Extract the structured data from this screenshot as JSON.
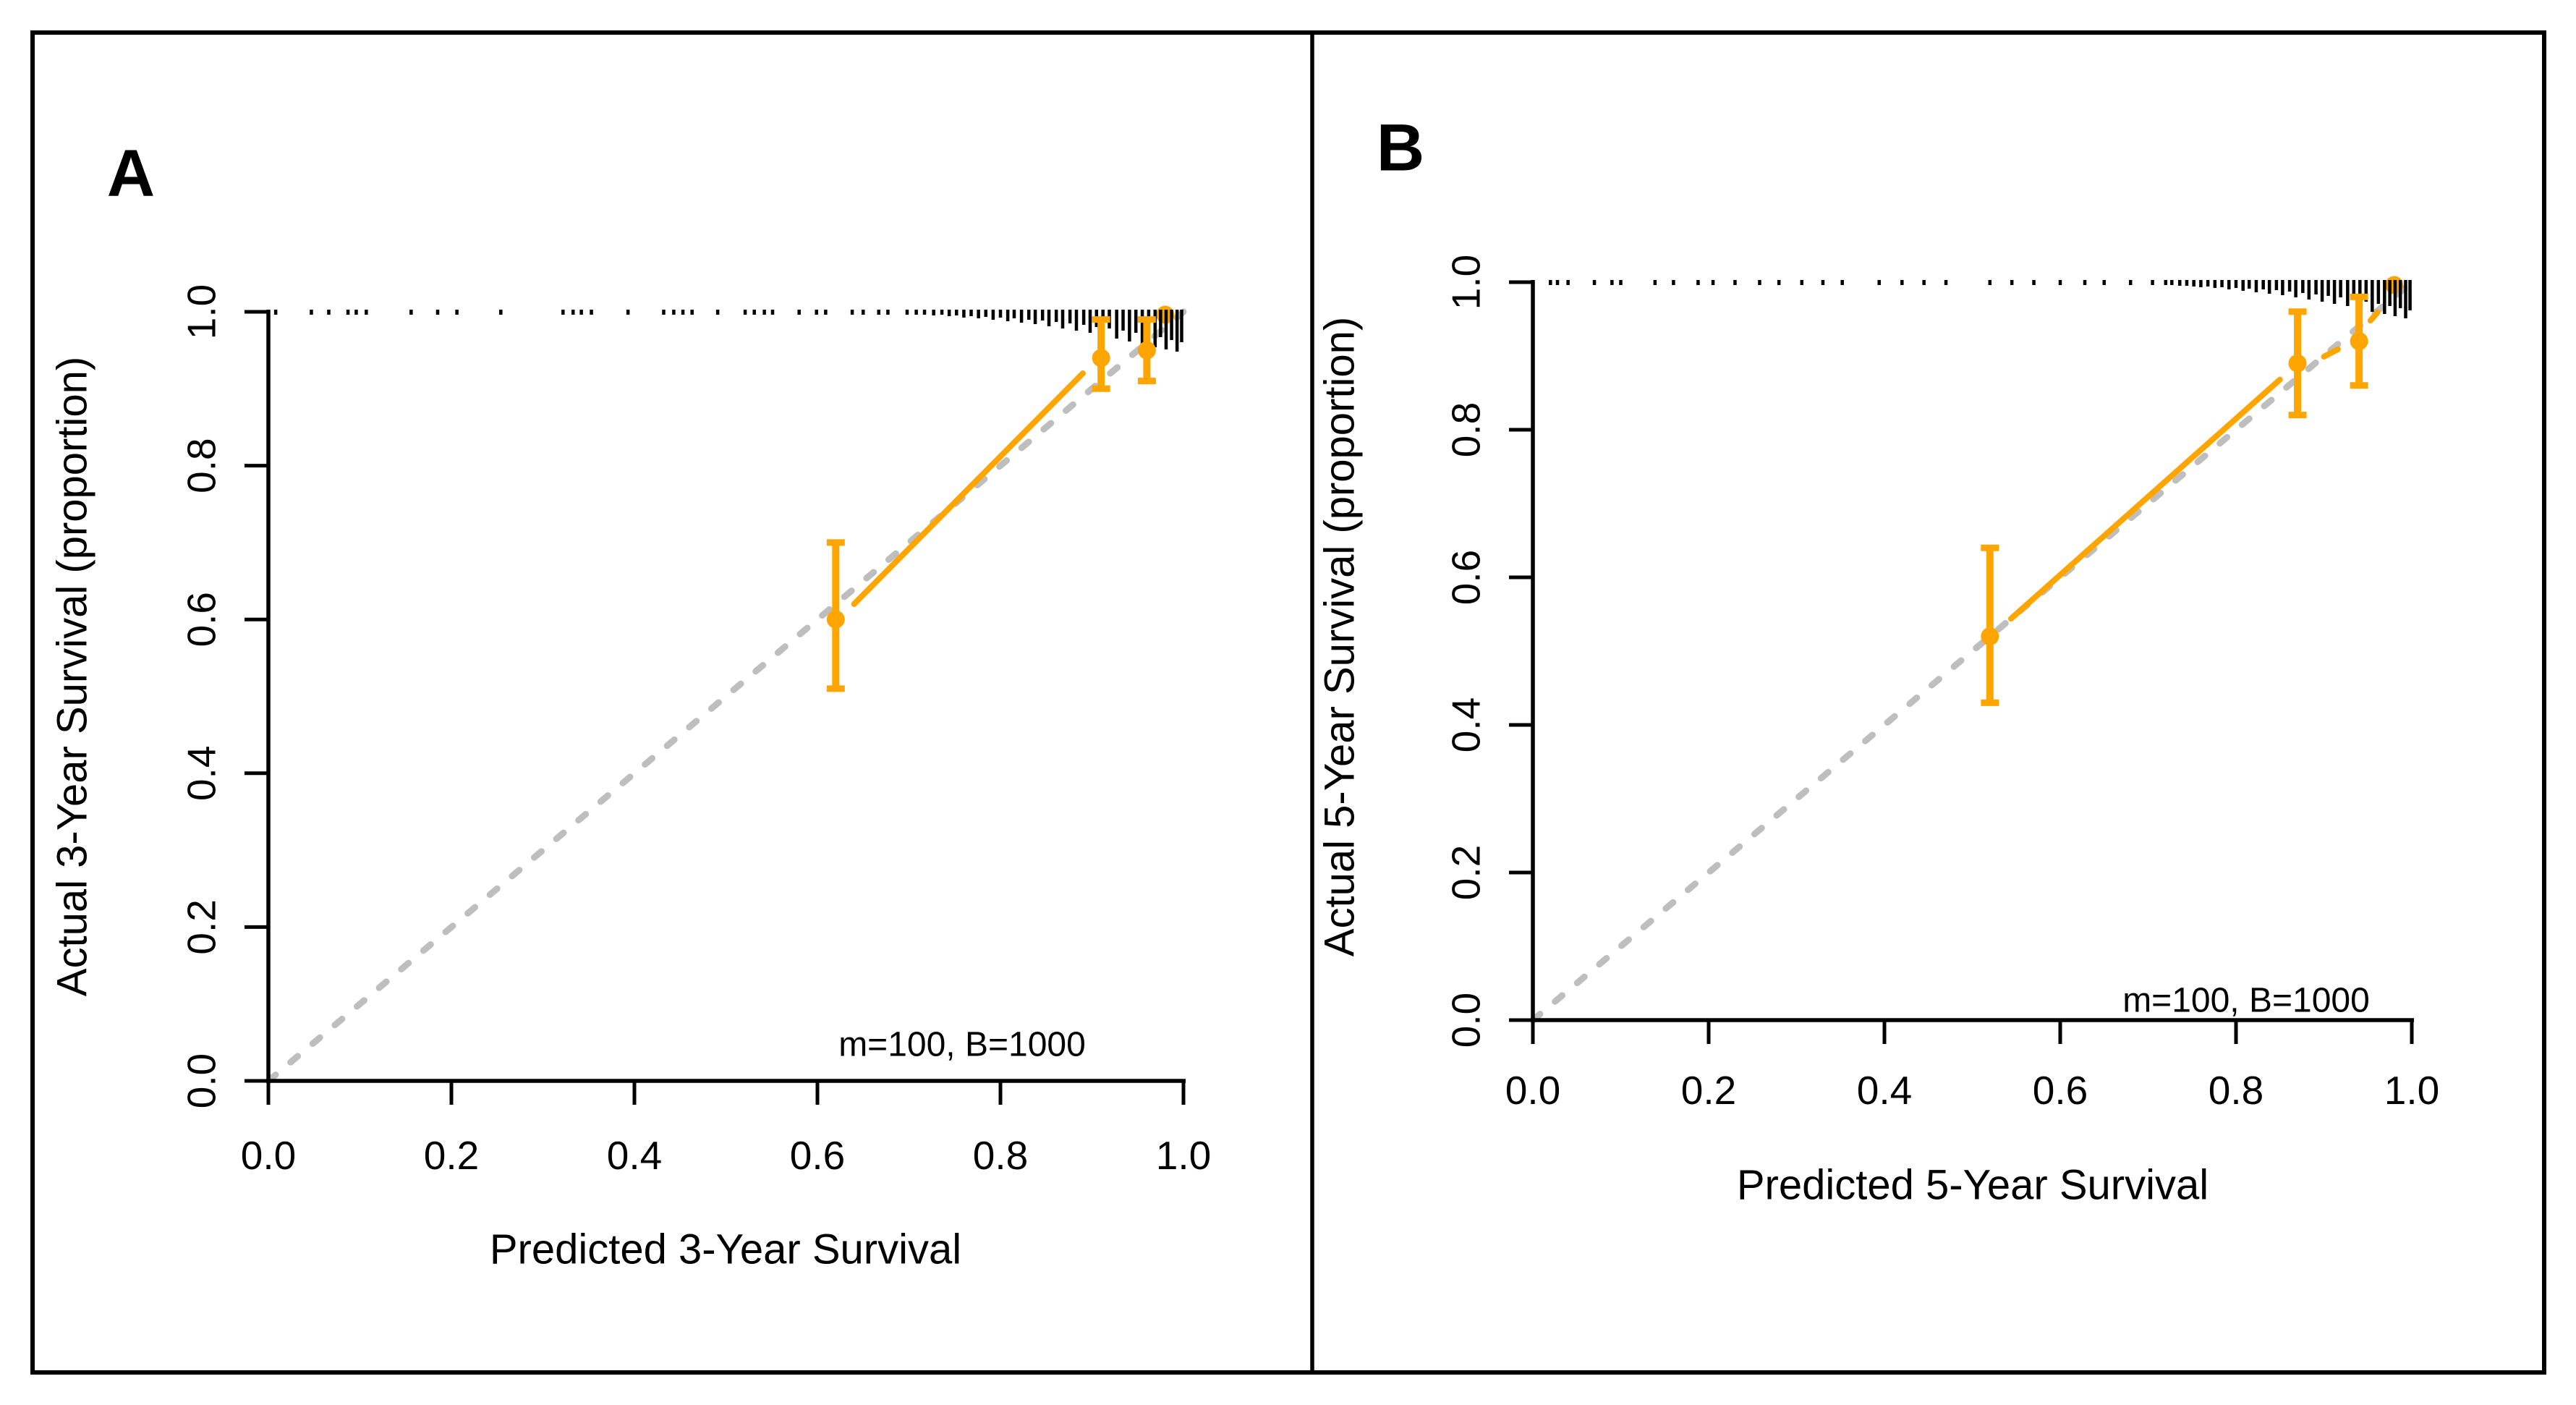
{
  "figure": {
    "background": "#ffffff",
    "border_color": "#000000",
    "accent_color": "#ffa500",
    "ideal_line_color": "#bebebe",
    "panels": [
      {
        "letter": "A",
        "x_label": "Predicted 3-Year Survival",
        "y_label": "Actual 3-Year Survival (proportion)",
        "annotation": "m=100, B=1000"
      },
      {
        "letter": "B",
        "x_label": "Predicted 5-Year Survival",
        "y_label": "Actual 5-Year Survival (proportion)",
        "annotation": "m=100, B=1000"
      }
    ]
  },
  "chart_data": [
    {
      "type": "scatter",
      "panel": "A",
      "title": "A",
      "xlabel": "Predicted 3-Year Survival",
      "ylabel": "Actual 3-Year Survival (proportion)",
      "annotation": "m=100, B=1000",
      "xlim": [
        0.0,
        1.0
      ],
      "ylim": [
        0.0,
        1.0
      ],
      "grid": false,
      "legend": null,
      "x_ticks": [
        0.0,
        0.2,
        0.4,
        0.6,
        0.8,
        1.0
      ],
      "x_tick_labels": [
        "0.0",
        "0.2",
        "0.4",
        "0.6",
        "0.8",
        "1.0"
      ],
      "y_ticks": [
        0.0,
        0.2,
        0.4,
        0.6,
        0.8,
        1.0
      ],
      "y_tick_labels": [
        "0.0",
        "0.2",
        "0.4",
        "0.6",
        "0.8",
        "1.0"
      ],
      "point_color": "#ffa500",
      "ideal_line": {
        "type": "identity",
        "style": "dashed",
        "color": "#bebebe",
        "from": [
          0.0,
          0.0
        ],
        "to": [
          1.0,
          1.0
        ]
      },
      "points": [
        {
          "x": 0.62,
          "y": 0.6,
          "ci_low": 0.51,
          "ci_high": 0.7
        },
        {
          "x": 0.91,
          "y": 0.94,
          "ci_low": 0.9,
          "ci_high": 0.99
        },
        {
          "x": 0.96,
          "y": 0.95,
          "ci_low": 0.91,
          "ci_high": 0.99
        },
        {
          "x": 0.98,
          "y": 1.0
        }
      ],
      "curve_segments": [
        [
          [
            0.64,
            0.62
          ],
          [
            0.89,
            0.92
          ]
        ]
      ],
      "rug_sparse_x": [
        0.008,
        0.047,
        0.066,
        0.087,
        0.096,
        0.107,
        0.156,
        0.185,
        0.206,
        0.254,
        0.322,
        0.333,
        0.342,
        0.353,
        0.393,
        0.432,
        0.443,
        0.453,
        0.463,
        0.491,
        0.521,
        0.531,
        0.542,
        0.551,
        0.58,
        0.599,
        0.609,
        0.638,
        0.65,
        0.667,
        0.677,
        0.698,
        0.708,
        0.717
      ],
      "rug_dense": [
        [
          0.727,
          8
        ],
        [
          0.736,
          7
        ],
        [
          0.744,
          9
        ],
        [
          0.752,
          8
        ],
        [
          0.76,
          11
        ],
        [
          0.768,
          9
        ],
        [
          0.776,
          12
        ],
        [
          0.784,
          10
        ],
        [
          0.792,
          14
        ],
        [
          0.8,
          11
        ],
        [
          0.808,
          16
        ],
        [
          0.815,
          12
        ],
        [
          0.823,
          18
        ],
        [
          0.831,
          14
        ],
        [
          0.838,
          20
        ],
        [
          0.846,
          15
        ],
        [
          0.853,
          23
        ],
        [
          0.861,
          17
        ],
        [
          0.868,
          26
        ],
        [
          0.876,
          19
        ],
        [
          0.883,
          29
        ],
        [
          0.891,
          21
        ],
        [
          0.898,
          32
        ],
        [
          0.905,
          24
        ],
        [
          0.912,
          36
        ],
        [
          0.919,
          26
        ],
        [
          0.927,
          40
        ],
        [
          0.934,
          29
        ],
        [
          0.941,
          44
        ],
        [
          0.948,
          32
        ],
        [
          0.955,
          48
        ],
        [
          0.962,
          35
        ],
        [
          0.969,
          52
        ],
        [
          0.975,
          38
        ],
        [
          0.981,
          55
        ],
        [
          0.987,
          42
        ],
        [
          0.993,
          58
        ],
        [
          0.998,
          45
        ]
      ]
    },
    {
      "type": "scatter",
      "panel": "B",
      "title": "B",
      "xlabel": "Predicted 5-Year Survival",
      "ylabel": "Actual 5-Year Survival (proportion)",
      "annotation": "m=100, B=1000",
      "xlim": [
        0.0,
        1.0
      ],
      "ylim": [
        0.0,
        1.0
      ],
      "grid": false,
      "legend": null,
      "x_ticks": [
        0.0,
        0.2,
        0.4,
        0.6,
        0.8,
        1.0
      ],
      "x_tick_labels": [
        "0.0",
        "0.2",
        "0.4",
        "0.6",
        "0.8",
        "1.0"
      ],
      "y_ticks": [
        0.0,
        0.2,
        0.4,
        0.6,
        0.8,
        1.0
      ],
      "y_tick_labels": [
        "0.0",
        "0.2",
        "0.4",
        "0.6",
        "0.8",
        "1.0"
      ],
      "point_color": "#ffa500",
      "ideal_line": {
        "type": "identity",
        "style": "dashed",
        "color": "#bebebe",
        "from": [
          0.0,
          0.0
        ],
        "to": [
          1.0,
          1.0
        ]
      },
      "points": [
        {
          "x": 0.52,
          "y": 0.52,
          "ci_low": 0.43,
          "ci_high": 0.64
        },
        {
          "x": 0.87,
          "y": 0.89,
          "ci_low": 0.82,
          "ci_high": 0.96
        },
        {
          "x": 0.94,
          "y": 0.92,
          "ci_low": 0.86,
          "ci_high": 0.98
        },
        {
          "x": 0.98,
          "y": 1.0
        }
      ],
      "curve_segments": [
        [
          [
            0.544,
            0.544
          ],
          [
            0.85,
            0.868
          ]
        ],
        [
          [
            0.9,
            0.899
          ],
          [
            0.916,
            0.909
          ]
        ],
        [
          [
            0.953,
            0.948
          ],
          [
            0.961,
            0.959
          ]
        ]
      ],
      "rug_sparse_x": [
        0.02,
        0.028,
        0.04,
        0.07,
        0.09,
        0.1,
        0.139,
        0.16,
        0.188,
        0.205,
        0.23,
        0.258,
        0.28,
        0.306,
        0.33,
        0.352,
        0.394,
        0.42,
        0.445,
        0.47,
        0.52,
        0.545,
        0.57,
        0.6,
        0.628,
        0.65,
        0.68,
        0.705,
        0.72
      ],
      "rug_dense": [
        [
          0.727,
          7
        ],
        [
          0.736,
          8
        ],
        [
          0.744,
          8
        ],
        [
          0.752,
          9
        ],
        [
          0.76,
          10
        ],
        [
          0.768,
          9
        ],
        [
          0.776,
          11
        ],
        [
          0.784,
          10
        ],
        [
          0.792,
          13
        ],
        [
          0.8,
          11
        ],
        [
          0.808,
          15
        ],
        [
          0.815,
          12
        ],
        [
          0.823,
          17
        ],
        [
          0.831,
          13
        ],
        [
          0.838,
          19
        ],
        [
          0.846,
          14
        ],
        [
          0.853,
          21
        ],
        [
          0.861,
          16
        ],
        [
          0.868,
          24
        ],
        [
          0.876,
          18
        ],
        [
          0.883,
          27
        ],
        [
          0.891,
          20
        ],
        [
          0.898,
          30
        ],
        [
          0.905,
          22
        ],
        [
          0.912,
          33
        ],
        [
          0.919,
          24
        ],
        [
          0.927,
          36
        ],
        [
          0.934,
          27
        ],
        [
          0.941,
          40
        ],
        [
          0.948,
          30
        ],
        [
          0.955,
          44
        ],
        [
          0.962,
          33
        ],
        [
          0.969,
          47
        ],
        [
          0.975,
          36
        ],
        [
          0.981,
          50
        ],
        [
          0.987,
          39
        ],
        [
          0.993,
          53
        ],
        [
          0.998,
          42
        ]
      ]
    }
  ]
}
